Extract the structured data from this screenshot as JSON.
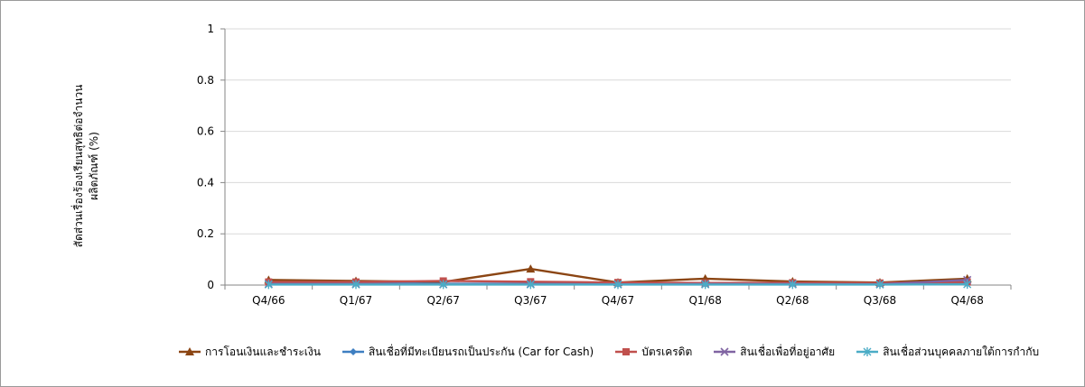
{
  "chart_data": {
    "type": "line",
    "title": "",
    "xlabel": "",
    "ylabel_lines": [
      "สัดส่วนเรื่องร้องเรียนสุทธิต่อจำนวน",
      "ผลิตภัณฑ์ (%)"
    ],
    "categories": [
      "Q4/66",
      "Q1/67",
      "Q2/67",
      "Q3/67",
      "Q4/67",
      "Q1/68",
      "Q2/68",
      "Q3/68",
      "Q4/68"
    ],
    "ylim": [
      0,
      1
    ],
    "yticks": [
      "0",
      "0.2",
      "0.4",
      "0.6",
      "0.8",
      "1"
    ],
    "grid": true,
    "legend_position": "bottom",
    "series": [
      {
        "name": "การโอนเงินและชำระเงิน",
        "color": "#8B4513",
        "marker": "triangle",
        "values": [
          0.02,
          0.016,
          0.012,
          0.063,
          0.01,
          0.025,
          0.014,
          0.01,
          0.025
        ]
      },
      {
        "name": "สินเชื่อที่มีทะเบียนรถเป็นประกัน  (Car for Cash)",
        "color": "#3E7FC1",
        "marker": "diamond",
        "values": [
          0.006,
          0.007,
          0.005,
          0.006,
          0.004,
          0.005,
          0.005,
          0.004,
          0.006
        ]
      },
      {
        "name": "บัตรเครดิต",
        "color": "#C0504D",
        "marker": "square",
        "values": [
          0.012,
          0.012,
          0.016,
          0.013,
          0.01,
          0.008,
          0.009,
          0.008,
          0.012
        ]
      },
      {
        "name": "สินเชื่อเพื่อที่อยู่อาศัย",
        "color": "#8064A2",
        "marker": "x",
        "values": [
          0.004,
          0.004,
          0.003,
          0.004,
          0.003,
          0.004,
          0.004,
          0.003,
          0.02
        ]
      },
      {
        "name": "สินเชื่อส่วนบุคคลภายใต้การกำกับ",
        "color": "#4BACC6",
        "marker": "asterisk",
        "values": [
          0.002,
          0.002,
          0.002,
          0.002,
          0.002,
          0.002,
          0.002,
          0.002,
          0.003
        ]
      }
    ]
  }
}
